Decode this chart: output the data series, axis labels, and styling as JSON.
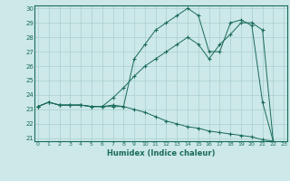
{
  "xlabel": "Humidex (Indice chaleur)",
  "background_color": "#cce8e8",
  "grid_color": "#aacfcf",
  "line_color": "#1a6b5a",
  "xmin": 0,
  "xmax": 23,
  "ymin": 21,
  "ymax": 30,
  "lines": [
    {
      "x": [
        0,
        1,
        2,
        3,
        4,
        5,
        6,
        7,
        8,
        9,
        10,
        11,
        12,
        13,
        14,
        15,
        16,
        17,
        18,
        19,
        20,
        21,
        22
      ],
      "y": [
        23.2,
        23.5,
        23.3,
        23.3,
        23.3,
        23.2,
        23.2,
        23.3,
        23.2,
        26.5,
        27.5,
        28.5,
        29.0,
        29.5,
        30.0,
        29.5,
        27.0,
        27.0,
        29.0,
        29.2,
        28.8,
        23.5,
        20.8
      ]
    },
    {
      "x": [
        0,
        1,
        2,
        3,
        4,
        5,
        6,
        7,
        8,
        9,
        10,
        11,
        12,
        13,
        14,
        15,
        16,
        17,
        18,
        19,
        20,
        21,
        22
      ],
      "y": [
        23.2,
        23.5,
        23.3,
        23.3,
        23.3,
        23.2,
        23.2,
        23.8,
        24.5,
        25.3,
        26.0,
        26.5,
        27.0,
        27.5,
        28.0,
        27.5,
        26.5,
        27.5,
        28.2,
        29.0,
        29.0,
        28.5,
        20.8
      ]
    },
    {
      "x": [
        0,
        1,
        2,
        3,
        4,
        5,
        6,
        7,
        8,
        9,
        10,
        11,
        12,
        13,
        14,
        15,
        16,
        17,
        18,
        19,
        20,
        21,
        22
      ],
      "y": [
        23.2,
        23.5,
        23.3,
        23.3,
        23.3,
        23.2,
        23.2,
        23.2,
        23.2,
        23.0,
        22.8,
        22.5,
        22.2,
        22.0,
        21.8,
        21.7,
        21.5,
        21.4,
        21.3,
        21.2,
        21.1,
        20.9,
        20.8
      ]
    }
  ]
}
